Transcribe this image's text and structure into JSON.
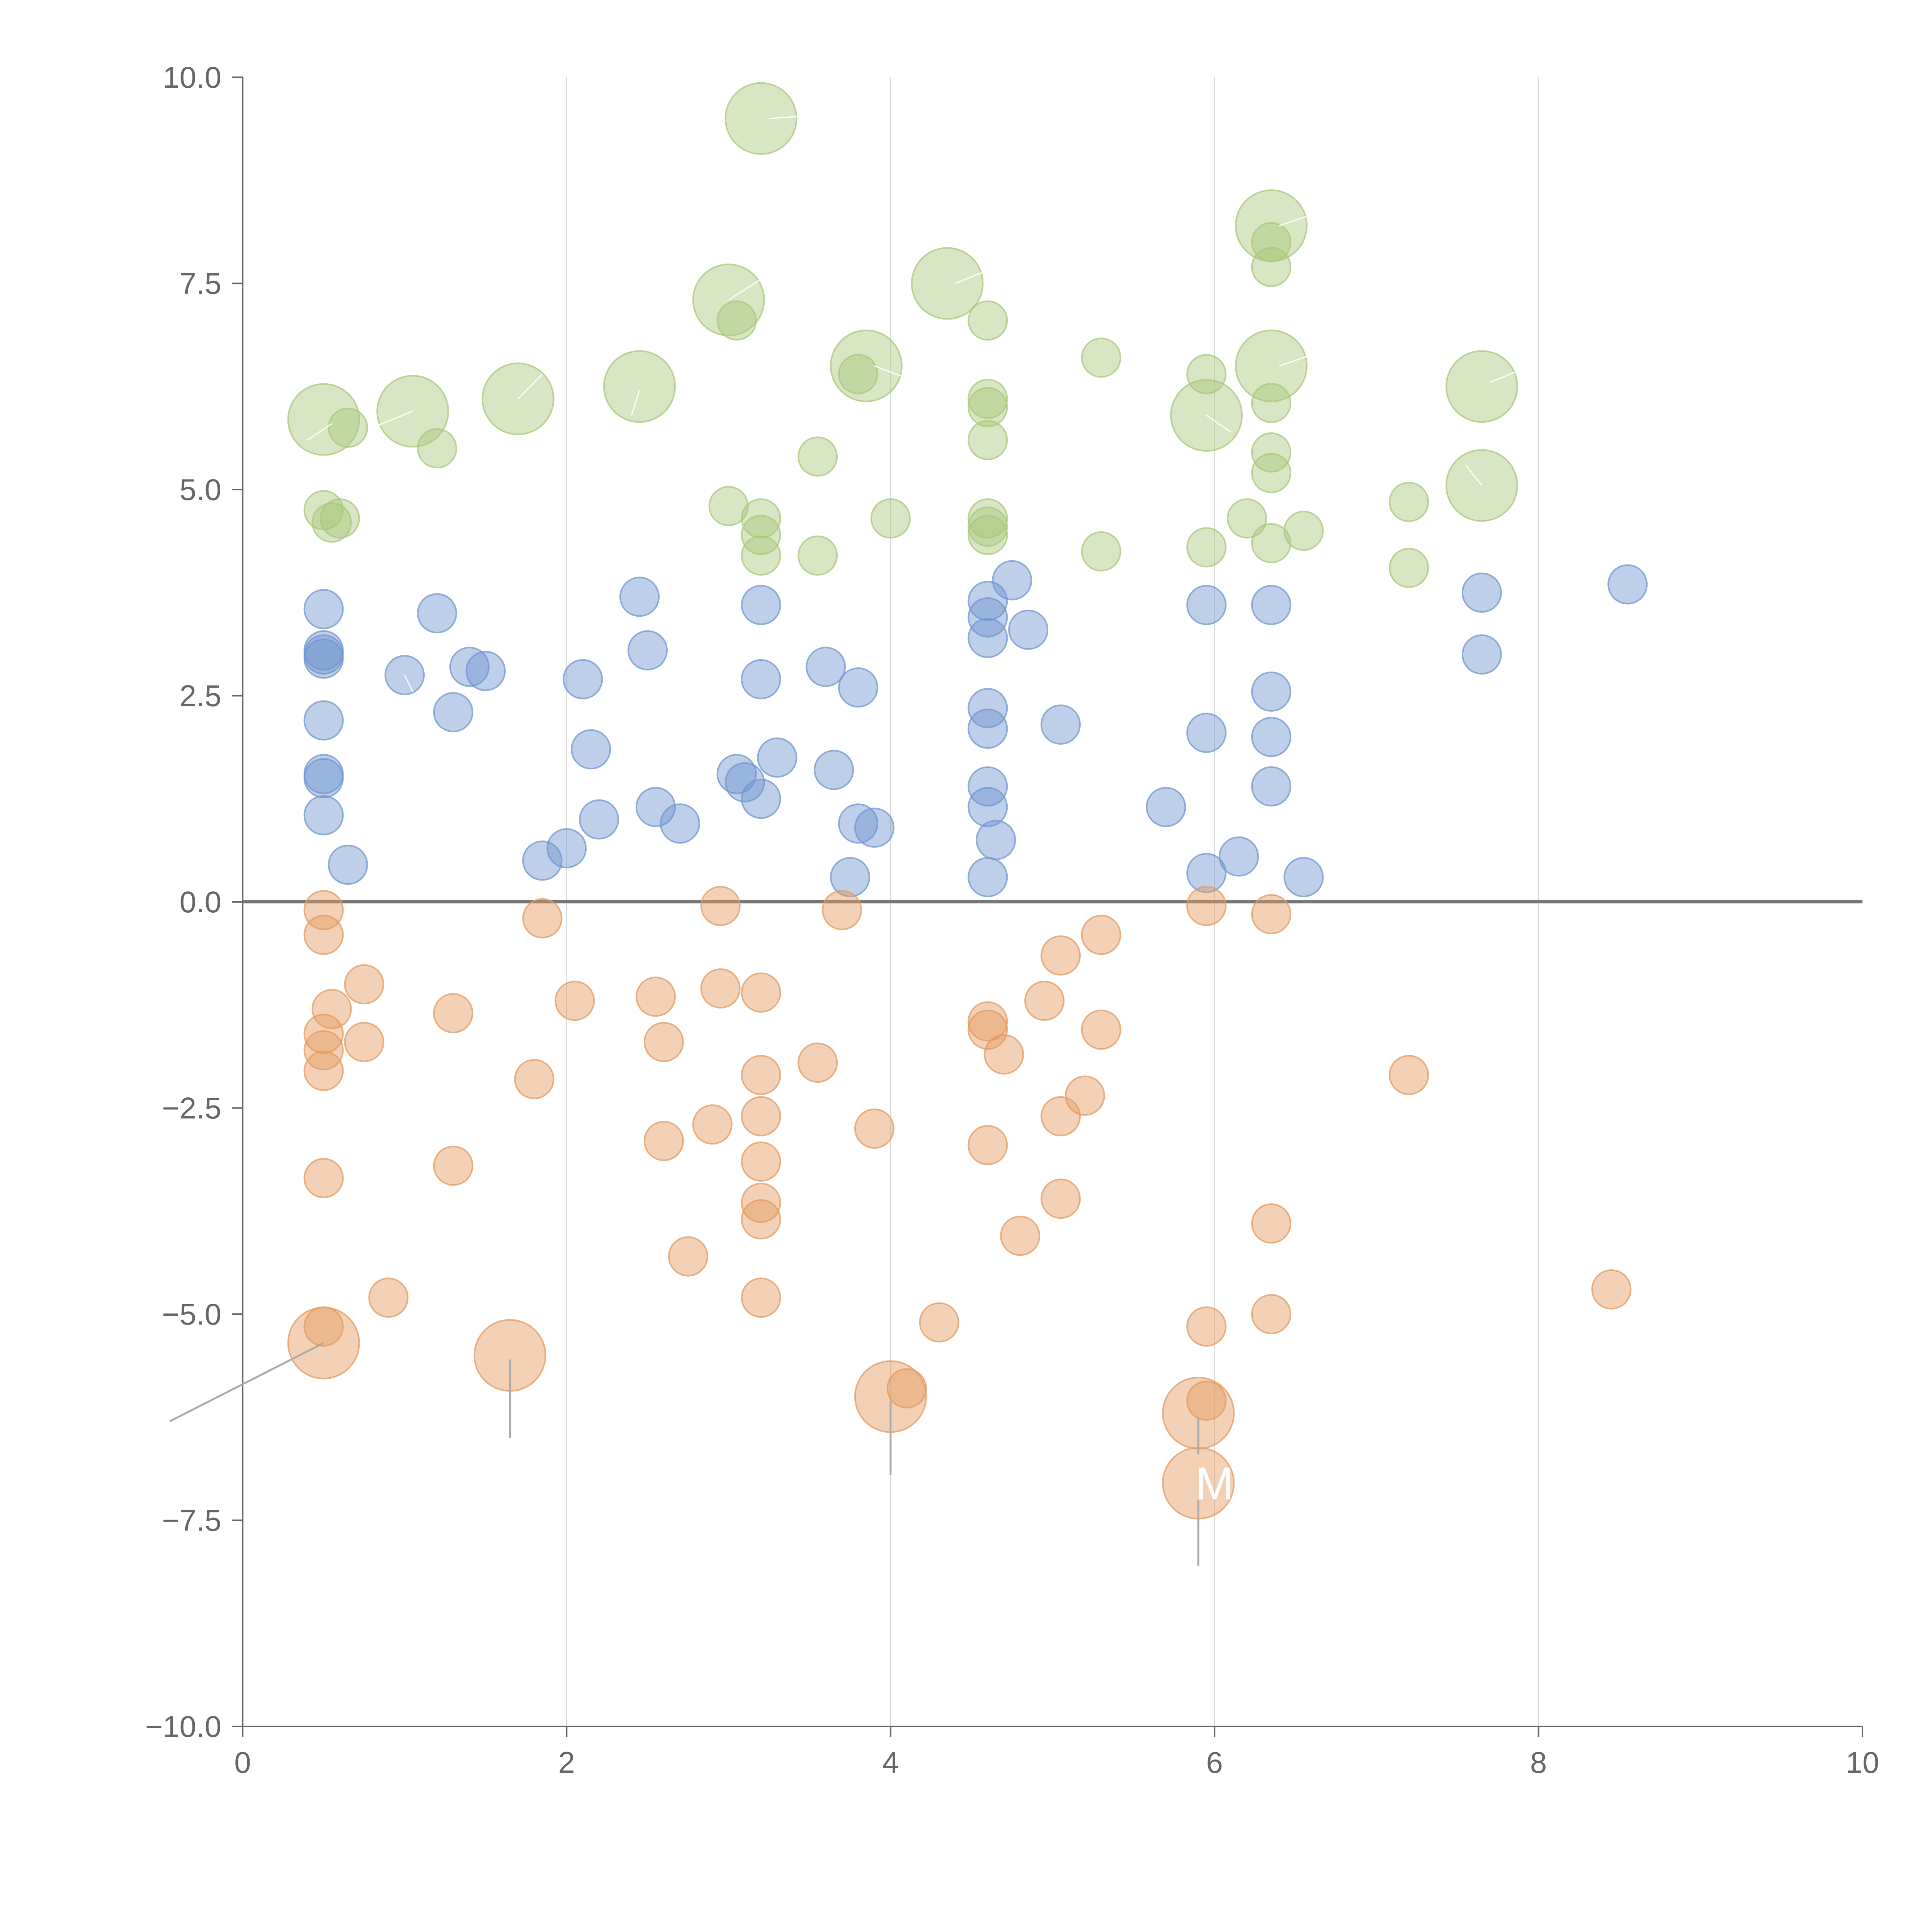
{
  "chart_data": {
    "type": "scatter",
    "title": "",
    "xlabel": "",
    "ylabel": "",
    "xlim": [
      0,
      10
    ],
    "ylim": [
      -10,
      10
    ],
    "xticks": [
      "0",
      "2",
      "4",
      "6",
      "8",
      "10"
    ],
    "yticks": [
      "10.0",
      "7.5",
      "5.0",
      "2.5",
      "0.0",
      "−2.5",
      "−5.0",
      "−7.5",
      "−10.0"
    ],
    "xtick_values": [
      0,
      2,
      4,
      6,
      8,
      10
    ],
    "ytick_values": [
      10,
      7.5,
      5,
      2.5,
      0,
      -2.5,
      -5,
      -7.5,
      -10
    ],
    "grid": "vertical",
    "zero_line": true,
    "legend": "none",
    "colors": {
      "green": "#a9c77a",
      "blue": "#6f95cf",
      "orange": "#e49a5e"
    },
    "series": [
      {
        "color": "green",
        "points": [
          [
            3.2,
            9.5,
            2
          ],
          [
            6.35,
            8.2,
            2
          ],
          [
            6.35,
            8.0,
            1
          ],
          [
            6.35,
            7.7,
            1
          ],
          [
            4.35,
            7.5,
            2
          ],
          [
            3.0,
            7.3,
            2
          ],
          [
            3.05,
            7.05,
            1
          ],
          [
            4.6,
            7.05,
            1
          ],
          [
            3.85,
            6.5,
            2
          ],
          [
            3.8,
            6.4,
            1
          ],
          [
            6.35,
            6.5,
            2
          ],
          [
            5.3,
            6.6,
            1
          ],
          [
            5.95,
            6.4,
            1
          ],
          [
            7.65,
            6.25,
            2
          ],
          [
            2.45,
            6.25,
            2
          ],
          [
            1.7,
            6.1,
            2
          ],
          [
            4.6,
            6.1,
            1
          ],
          [
            6.35,
            6.05,
            1
          ],
          [
            4.6,
            6.0,
            1
          ],
          [
            1.05,
            5.95,
            2
          ],
          [
            5.95,
            5.9,
            2
          ],
          [
            0.5,
            5.85,
            2
          ],
          [
            0.65,
            5.75,
            1
          ],
          [
            4.6,
            5.6,
            1
          ],
          [
            1.2,
            5.5,
            1
          ],
          [
            6.35,
            5.45,
            1
          ],
          [
            3.55,
            5.4,
            1
          ],
          [
            6.35,
            5.2,
            1
          ],
          [
            7.65,
            5.05,
            2
          ],
          [
            3.0,
            4.8,
            1
          ],
          [
            7.2,
            4.85,
            1
          ],
          [
            0.5,
            4.75,
            1
          ],
          [
            0.55,
            4.6,
            1
          ],
          [
            0.6,
            4.65,
            1
          ],
          [
            3.2,
            4.65,
            1
          ],
          [
            4.6,
            4.65,
            1
          ],
          [
            4.6,
            4.55,
            1
          ],
          [
            4.0,
            4.65,
            1
          ],
          [
            6.2,
            4.65,
            1
          ],
          [
            6.55,
            4.5,
            1
          ],
          [
            3.2,
            4.45,
            1
          ],
          [
            4.6,
            4.45,
            1
          ],
          [
            6.35,
            4.35,
            1
          ],
          [
            5.95,
            4.3,
            1
          ],
          [
            5.3,
            4.25,
            1
          ],
          [
            3.55,
            4.2,
            1
          ],
          [
            3.2,
            4.2,
            1
          ],
          [
            7.2,
            4.05,
            1
          ]
        ]
      },
      {
        "color": "blue",
        "points": [
          [
            8.55,
            3.85,
            1
          ],
          [
            4.75,
            3.9,
            1
          ],
          [
            7.65,
            3.75,
            1
          ],
          [
            2.45,
            3.7,
            1
          ],
          [
            4.6,
            3.65,
            1
          ],
          [
            6.35,
            3.6,
            1
          ],
          [
            3.2,
            3.6,
            1
          ],
          [
            5.95,
            3.6,
            1
          ],
          [
            0.5,
            3.55,
            1
          ],
          [
            1.2,
            3.5,
            1
          ],
          [
            4.6,
            3.45,
            1
          ],
          [
            4.85,
            3.3,
            1
          ],
          [
            4.6,
            3.2,
            1
          ],
          [
            0.5,
            3.05,
            1
          ],
          [
            0.5,
            3.0,
            1
          ],
          [
            2.5,
            3.05,
            1
          ],
          [
            7.65,
            3.0,
            1
          ],
          [
            0.5,
            2.95,
            1
          ],
          [
            3.6,
            2.85,
            1
          ],
          [
            1.4,
            2.85,
            1
          ],
          [
            1.5,
            2.8,
            1
          ],
          [
            1.0,
            2.75,
            1
          ],
          [
            2.1,
            2.7,
            1
          ],
          [
            3.2,
            2.7,
            1
          ],
          [
            3.8,
            2.6,
            1
          ],
          [
            6.35,
            2.55,
            1
          ],
          [
            4.6,
            2.35,
            1
          ],
          [
            1.3,
            2.3,
            1
          ],
          [
            0.5,
            2.2,
            1
          ],
          [
            5.05,
            2.15,
            1
          ],
          [
            4.6,
            2.1,
            1
          ],
          [
            5.95,
            2.05,
            1
          ],
          [
            6.35,
            2.0,
            1
          ],
          [
            2.15,
            1.85,
            1
          ],
          [
            3.3,
            1.75,
            1
          ],
          [
            3.65,
            1.6,
            1
          ],
          [
            0.5,
            1.55,
            1
          ],
          [
            0.5,
            1.5,
            1
          ],
          [
            3.05,
            1.55,
            1
          ],
          [
            3.1,
            1.45,
            1
          ],
          [
            4.6,
            1.4,
            1
          ],
          [
            6.35,
            1.4,
            1
          ],
          [
            3.2,
            1.25,
            1
          ],
          [
            2.55,
            1.15,
            1
          ],
          [
            4.6,
            1.15,
            1
          ],
          [
            5.7,
            1.15,
            1
          ],
          [
            0.5,
            1.05,
            1
          ],
          [
            2.2,
            1.0,
            1
          ],
          [
            2.7,
            0.95,
            1
          ],
          [
            3.8,
            0.95,
            1
          ],
          [
            3.9,
            0.9,
            1
          ],
          [
            4.65,
            0.75,
            1
          ],
          [
            2.0,
            0.65,
            1
          ],
          [
            6.15,
            0.55,
            1
          ],
          [
            1.85,
            0.5,
            1
          ],
          [
            0.65,
            0.45,
            1
          ],
          [
            5.95,
            0.35,
            1
          ],
          [
            3.75,
            0.3,
            1
          ],
          [
            4.6,
            0.3,
            1
          ],
          [
            6.55,
            0.3,
            1
          ]
        ]
      },
      {
        "color": "orange",
        "points": [
          [
            2.95,
            -0.05,
            1
          ],
          [
            5.95,
            -0.05,
            1
          ],
          [
            0.5,
            -0.1,
            1
          ],
          [
            3.7,
            -0.1,
            1
          ],
          [
            6.35,
            -0.15,
            1
          ],
          [
            1.85,
            -0.2,
            1
          ],
          [
            0.5,
            -0.4,
            1
          ],
          [
            5.3,
            -0.4,
            1
          ],
          [
            5.05,
            -0.65,
            1
          ],
          [
            0.75,
            -1.0,
            1
          ],
          [
            2.95,
            -1.05,
            1
          ],
          [
            3.2,
            -1.1,
            1
          ],
          [
            2.55,
            -1.15,
            1
          ],
          [
            2.05,
            -1.2,
            1
          ],
          [
            4.95,
            -1.2,
            1
          ],
          [
            0.55,
            -1.3,
            1
          ],
          [
            1.3,
            -1.35,
            1
          ],
          [
            4.6,
            -1.45,
            1
          ],
          [
            4.6,
            -1.55,
            1
          ],
          [
            5.3,
            -1.55,
            1
          ],
          [
            0.5,
            -1.6,
            1
          ],
          [
            0.75,
            -1.7,
            1
          ],
          [
            2.6,
            -1.7,
            1
          ],
          [
            0.5,
            -1.8,
            1
          ],
          [
            4.7,
            -1.85,
            1
          ],
          [
            3.55,
            -1.95,
            1
          ],
          [
            0.5,
            -2.05,
            1
          ],
          [
            3.2,
            -2.1,
            1
          ],
          [
            7.2,
            -2.1,
            1
          ],
          [
            1.8,
            -2.15,
            1
          ],
          [
            5.2,
            -2.35,
            1
          ],
          [
            3.2,
            -2.6,
            1
          ],
          [
            5.05,
            -2.6,
            1
          ],
          [
            2.9,
            -2.7,
            1
          ],
          [
            3.9,
            -2.75,
            1
          ],
          [
            2.6,
            -2.9,
            1
          ],
          [
            4.6,
            -2.95,
            1
          ],
          [
            1.3,
            -3.2,
            1
          ],
          [
            3.2,
            -3.15,
            1
          ],
          [
            0.5,
            -3.35,
            1
          ],
          [
            5.05,
            -3.6,
            1
          ],
          [
            3.2,
            -3.65,
            1
          ],
          [
            3.2,
            -3.85,
            1
          ],
          [
            6.35,
            -3.9,
            1
          ],
          [
            4.8,
            -4.05,
            1
          ],
          [
            2.75,
            -4.3,
            1
          ],
          [
            8.45,
            -4.7,
            1
          ],
          [
            0.9,
            -4.8,
            1
          ],
          [
            3.2,
            -4.8,
            1
          ],
          [
            6.35,
            -5.0,
            1
          ],
          [
            4.3,
            -5.1,
            1
          ],
          [
            5.95,
            -5.15,
            1
          ],
          [
            0.5,
            -5.15,
            1
          ],
          [
            0.5,
            -5.35,
            2
          ],
          [
            1.65,
            -5.5,
            2
          ],
          [
            4.1,
            -5.9,
            1
          ],
          [
            4.0,
            -6.0,
            2
          ],
          [
            5.95,
            -6.05,
            1
          ],
          [
            5.9,
            -6.2,
            2
          ],
          [
            5.9,
            -7.05,
            2
          ]
        ]
      }
    ],
    "annotations": [
      {
        "text": "M",
        "x": 5.9,
        "y": -7.05
      }
    ]
  }
}
